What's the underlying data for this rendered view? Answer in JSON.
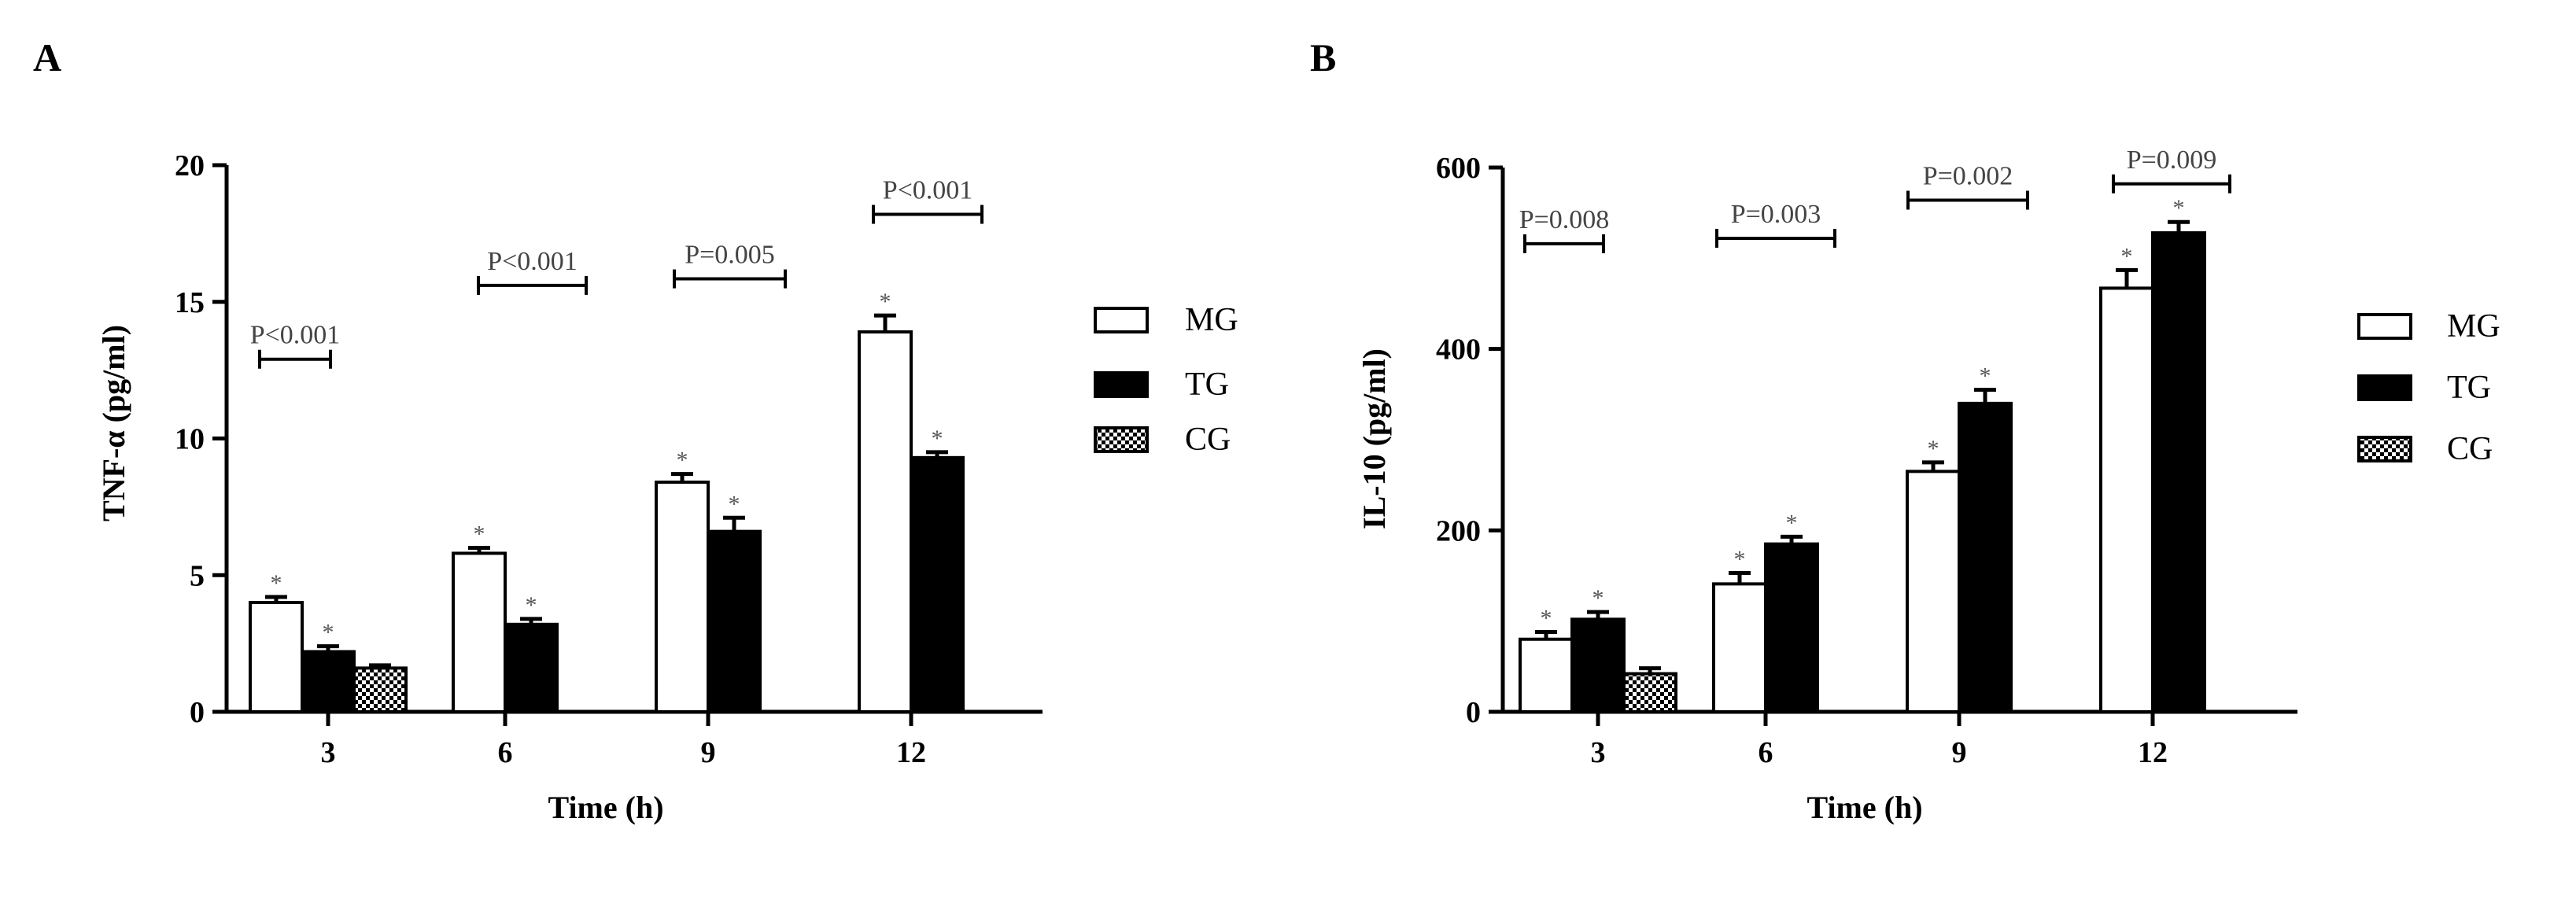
{
  "panels": [
    {
      "letter": "A"
    },
    {
      "letter": "B"
    }
  ],
  "colors": {
    "MG": "#ffffff",
    "TG": "#000000",
    "CG": "checkered"
  },
  "chart_data": [
    {
      "type": "bar",
      "panel": "A",
      "categories": [
        "3",
        "6",
        "9",
        "12"
      ],
      "series": [
        {
          "name": "MG",
          "values": [
            4.0,
            5.8,
            8.4,
            13.9
          ],
          "errors": [
            0.2,
            0.2,
            0.3,
            0.6
          ]
        },
        {
          "name": "TG",
          "values": [
            2.2,
            3.2,
            6.6,
            9.3
          ],
          "errors": [
            0.2,
            0.2,
            0.5,
            0.2
          ]
        },
        {
          "name": "CG",
          "values": [
            1.6,
            null,
            null,
            null
          ],
          "errors": [
            0.1,
            null,
            null,
            null
          ]
        }
      ],
      "xlabel": "Time (h)",
      "ylabel": "TNF-α (pg/ml)",
      "ylim": [
        0,
        20
      ],
      "yticks": [
        "0",
        "5",
        "10",
        "15",
        "20"
      ],
      "stars": [
        [
          true,
          true,
          false
        ],
        [
          true,
          true,
          false
        ],
        [
          true,
          true,
          false
        ],
        [
          true,
          true,
          false
        ]
      ],
      "brackets": [
        "P<0.001",
        "P<0.001",
        "P=0.005",
        "P<0.001"
      ],
      "legend": [
        "MG",
        "TG",
        "CG"
      ]
    },
    {
      "type": "bar",
      "panel": "B",
      "categories": [
        "3",
        "6",
        "9",
        "12"
      ],
      "series": [
        {
          "name": "MG",
          "values": [
            80,
            141,
            265,
            467
          ],
          "errors": [
            8,
            12,
            10,
            20
          ]
        },
        {
          "name": "TG",
          "values": [
            102,
            185,
            340,
            528
          ],
          "errors": [
            8,
            8,
            15,
            12
          ]
        },
        {
          "name": "CG",
          "values": [
            42,
            null,
            null,
            null
          ],
          "errors": [
            6,
            null,
            null,
            null
          ]
        }
      ],
      "xlabel": "Time (h)",
      "ylabel": "IL-10 (pg/ml)",
      "ylim": [
        0,
        600
      ],
      "yticks": [
        "0",
        "200",
        "400",
        "600"
      ],
      "stars": [
        [
          true,
          true,
          false
        ],
        [
          true,
          true,
          false
        ],
        [
          true,
          true,
          false
        ],
        [
          true,
          true,
          false
        ]
      ],
      "brackets": [
        "P=0.008",
        "P=0.003",
        "P=0.002",
        "P=0.009"
      ],
      "legend": [
        "MG",
        "TG",
        "CG"
      ]
    }
  ]
}
